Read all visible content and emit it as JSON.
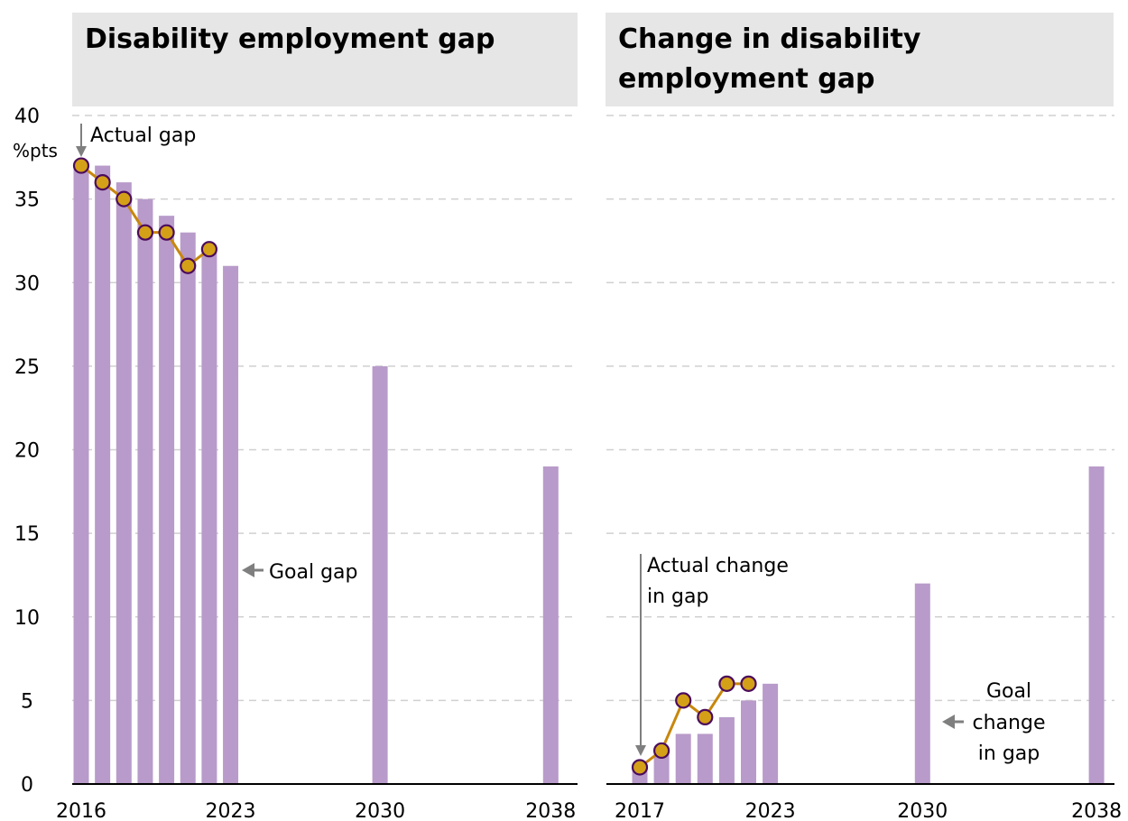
{
  "chart_data": [
    {
      "type": "bar",
      "title": "Disability employment gap",
      "ylabel": "%pts",
      "ylim": [
        0,
        40
      ],
      "yticks": [
        0,
        5,
        10,
        15,
        20,
        25,
        30,
        35,
        40
      ],
      "x_tick_labels": [
        "2016",
        "2023",
        "2030",
        "2038"
      ],
      "grid": true,
      "series": [
        {
          "name": "Goal gap",
          "type": "bar",
          "x": [
            2016,
            2017,
            2018,
            2019,
            2020,
            2021,
            2022,
            2023,
            2030,
            2038
          ],
          "values": [
            37,
            37,
            36,
            35,
            34,
            33,
            32,
            31,
            25,
            19
          ]
        },
        {
          "name": "Actual gap",
          "type": "line",
          "x": [
            2016,
            2017,
            2018,
            2019,
            2020,
            2021,
            2022
          ],
          "values": [
            37,
            36,
            35,
            33,
            33,
            31,
            32
          ]
        }
      ]
    },
    {
      "type": "bar",
      "title": "Change in disability employment gap",
      "ylim": [
        0,
        40
      ],
      "x_tick_labels": [
        "2017",
        "2023",
        "2030",
        "2038"
      ],
      "grid": true,
      "series": [
        {
          "name": "Goal change in gap",
          "type": "bar",
          "x": [
            2017,
            2018,
            2019,
            2020,
            2021,
            2022,
            2023,
            2030,
            2038
          ],
          "values": [
            1,
            2,
            3,
            3,
            4,
            5,
            6,
            12,
            19
          ]
        },
        {
          "name": "Actual change in gap",
          "type": "line",
          "x": [
            2017,
            2018,
            2019,
            2020,
            2021,
            2022
          ],
          "values": [
            1,
            2,
            5,
            4,
            6,
            6
          ]
        }
      ]
    }
  ],
  "annotations": {
    "left_actual": "Actual  gap",
    "left_goal": "Goal gap",
    "right_actual_line1": "Actual change",
    "right_actual_line2": "in gap",
    "right_goal_line1": "Goal",
    "right_goal_line2": "change",
    "right_goal_line3": "in gap"
  },
  "colors": {
    "bar": "#b89bca",
    "line": "#c8870c",
    "marker_fill": "#d4a017",
    "marker_stroke": "#4b0b5c",
    "grid": "#d0d0d0",
    "arrow": "#7f7f7f",
    "title_bg": "#e6e6e6"
  }
}
